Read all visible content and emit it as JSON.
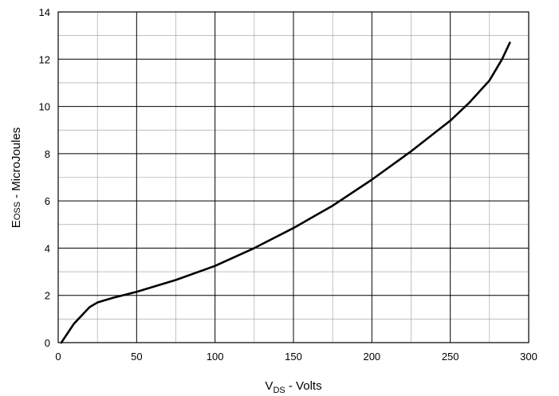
{
  "chart_data": {
    "type": "line",
    "title": "",
    "xlabel": {
      "main": "V",
      "sub": "DS",
      "rest": " - Volts"
    },
    "ylabel": {
      "main": "E",
      "sub": "OSS",
      "rest": " - MicroJoules"
    },
    "xlim": [
      0,
      300
    ],
    "ylim": [
      0,
      14
    ],
    "x_major_ticks": [
      0,
      50,
      100,
      150,
      200,
      250,
      300
    ],
    "y_major_ticks": [
      0,
      2,
      4,
      6,
      8,
      10,
      12,
      14
    ],
    "x_minor_step": 25,
    "y_minor_step": 1,
    "grid": true,
    "series": [
      {
        "x": [
          2,
          10,
          20,
          25,
          35,
          50,
          75,
          100,
          125,
          150,
          175,
          200,
          225,
          250,
          262,
          275,
          283,
          288
        ],
        "y": [
          0,
          0.8,
          1.5,
          1.7,
          1.9,
          2.15,
          2.65,
          3.25,
          4.0,
          4.85,
          5.8,
          6.9,
          8.1,
          9.4,
          10.15,
          11.1,
          12.0,
          12.7
        ],
        "color": "#000000"
      }
    ]
  }
}
